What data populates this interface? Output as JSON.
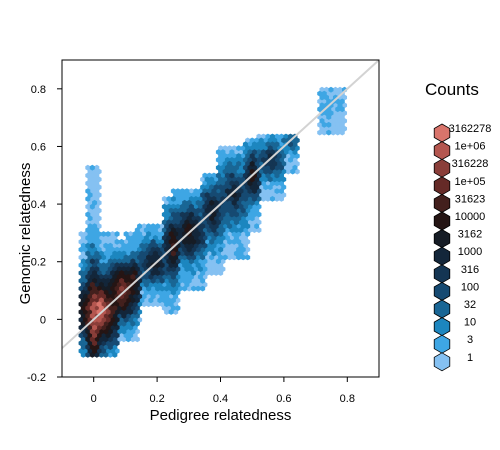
{
  "chart_data": {
    "type": "heatmap",
    "subtype": "hexbin",
    "xlabel": "Pedigree relatedness",
    "ylabel": "Genomic relatedness",
    "xlim": [
      -0.1,
      0.9
    ],
    "ylim": [
      -0.2,
      0.9
    ],
    "x_ticks": [
      0,
      0.2,
      0.4,
      0.6,
      0.8
    ],
    "x_tick_labels": [
      "0",
      "0.2",
      "0.4",
      "0.6",
      "0.8"
    ],
    "y_ticks": [
      -0.2,
      0,
      0.2,
      0.4,
      0.6,
      0.8
    ],
    "y_tick_labels": [
      "-0.2",
      "0",
      "0.2",
      "0.4",
      "0.6",
      "0.8"
    ],
    "grid": false,
    "reference_line": {
      "type": "identity",
      "slope": 1,
      "intercept": 0,
      "color": "#d3d3d3"
    },
    "legend": {
      "title": "Counts",
      "position": "right",
      "entries": [
        {
          "label": "3162278",
          "color": "#d9746b"
        },
        {
          "label": "1e+06",
          "color": "#b4564f"
        },
        {
          "label": "316228",
          "color": "#8a3e39"
        },
        {
          "label": "1e+05",
          "color": "#652a27"
        },
        {
          "label": "31623",
          "color": "#43201d"
        },
        {
          "label": "10000",
          "color": "#251514"
        },
        {
          "label": "3162",
          "color": "#161c25"
        },
        {
          "label": "1000",
          "color": "#13263a"
        },
        {
          "label": "316",
          "color": "#143553"
        },
        {
          "label": "100",
          "color": "#164a72"
        },
        {
          "label": "32",
          "color": "#196695"
        },
        {
          "label": "10",
          "color": "#1c86bf"
        },
        {
          "label": "3",
          "color": "#3ea6e4"
        },
        {
          "label": "1",
          "color": "#85c1f2"
        }
      ]
    },
    "clusters": [
      {
        "x": 0.0,
        "y_min": -0.13,
        "y_max": 0.52,
        "x_spread": 0.005,
        "peak_level": 13
      },
      {
        "x": 0.02,
        "y_min": -0.12,
        "y_max": 0.3,
        "x_spread": 0.05,
        "peak_level": 13
      },
      {
        "x": 0.09,
        "y_min": -0.08,
        "y_max": 0.27,
        "x_spread": 0.04,
        "peak_level": 11
      },
      {
        "x": 0.125,
        "y_min": 0.0,
        "y_max": 0.3,
        "x_spread": 0.015,
        "peak_level": 9
      },
      {
        "x": 0.19,
        "y_min": 0.05,
        "y_max": 0.33,
        "x_spread": 0.04,
        "peak_level": 7
      },
      {
        "x": 0.25,
        "y_min": 0.02,
        "y_max": 0.42,
        "x_spread": 0.015,
        "peak_level": 9
      },
      {
        "x": 0.3,
        "y_min": 0.1,
        "y_max": 0.45,
        "x_spread": 0.04,
        "peak_level": 8
      },
      {
        "x": 0.375,
        "y_min": 0.15,
        "y_max": 0.5,
        "x_spread": 0.025,
        "peak_level": 7
      },
      {
        "x": 0.44,
        "y_min": 0.22,
        "y_max": 0.6,
        "x_spread": 0.04,
        "peak_level": 6
      },
      {
        "x": 0.5,
        "y_min": 0.3,
        "y_max": 0.62,
        "x_spread": 0.015,
        "peak_level": 8
      },
      {
        "x": 0.56,
        "y_min": 0.42,
        "y_max": 0.64,
        "x_spread": 0.03,
        "peak_level": 6
      },
      {
        "x": 0.625,
        "y_min": 0.5,
        "y_max": 0.63,
        "x_spread": 0.015,
        "peak_level": 4
      },
      {
        "x": 0.75,
        "y_min": 0.65,
        "y_max": 0.8,
        "x_spread": 0.03,
        "peak_level": 1
      }
    ]
  }
}
